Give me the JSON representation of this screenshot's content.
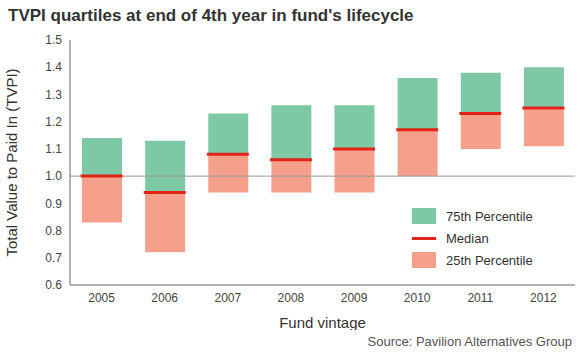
{
  "chart_data": {
    "type": "bar",
    "title": "TVPI quartiles at end of 4th year in fund's lifecycle",
    "subtitle": "Source: Pavilion Alternatives Group",
    "x_label": "Fund vintage",
    "y_label": "Total Value to Paid In (TVPI)",
    "categories": [
      "2005",
      "2006",
      "2007",
      "2008",
      "2009",
      "2010",
      "2011",
      "2012"
    ],
    "series": [
      {
        "name": "75th Percentile",
        "color": "#7fc8a6",
        "values": [
          1.14,
          1.13,
          1.23,
          1.26,
          1.26,
          1.36,
          1.38,
          1.4
        ]
      },
      {
        "name": "Median",
        "color": "#e2231a",
        "values": [
          1.0,
          0.94,
          1.08,
          1.06,
          1.1,
          1.17,
          1.23,
          1.25
        ]
      },
      {
        "name": "25th Percentile",
        "color": "#f4a08a",
        "values": [
          0.83,
          0.72,
          0.94,
          0.94,
          0.94,
          1.0,
          1.1,
          1.11
        ]
      }
    ],
    "baseline": 1,
    "ylim": [
      0.6,
      1.5
    ],
    "yticks": [
      0.6,
      0.7,
      0.8,
      0.9,
      {
        "value": 1,
        "label": "1.0"
      },
      1.1,
      1.2,
      1.3,
      1.4,
      1.5
    ],
    "grid": false,
    "legend": "lower right"
  }
}
